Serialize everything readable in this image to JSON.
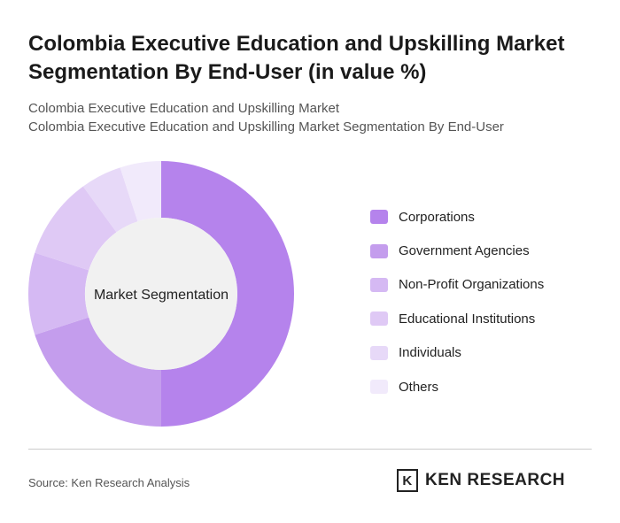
{
  "title": "Colombia Executive Education and Upskilling Market Segmentation By End-User (in value %)",
  "subtitle1": "Colombia Executive Education and Upskilling Market",
  "subtitle2": "Colombia Executive Education and Upskilling Market Segmentation By End-User",
  "source": "Source: Ken Research Analysis",
  "logo_text": "KEN RESEARCH",
  "chart_data": {
    "type": "pie",
    "center_label": "Market Segmentation",
    "categories": [
      "Corporations",
      "Government Agencies",
      "Non-Profit Organizations",
      "Educational Institutions",
      "Individuals",
      "Others"
    ],
    "values": [
      50,
      20,
      10,
      10,
      5,
      5
    ],
    "colors": [
      "#b583ec",
      "#c49ded",
      "#d5b9f3",
      "#dfc9f5",
      "#e7d9f8",
      "#f1eafb"
    ],
    "legend": "right"
  }
}
